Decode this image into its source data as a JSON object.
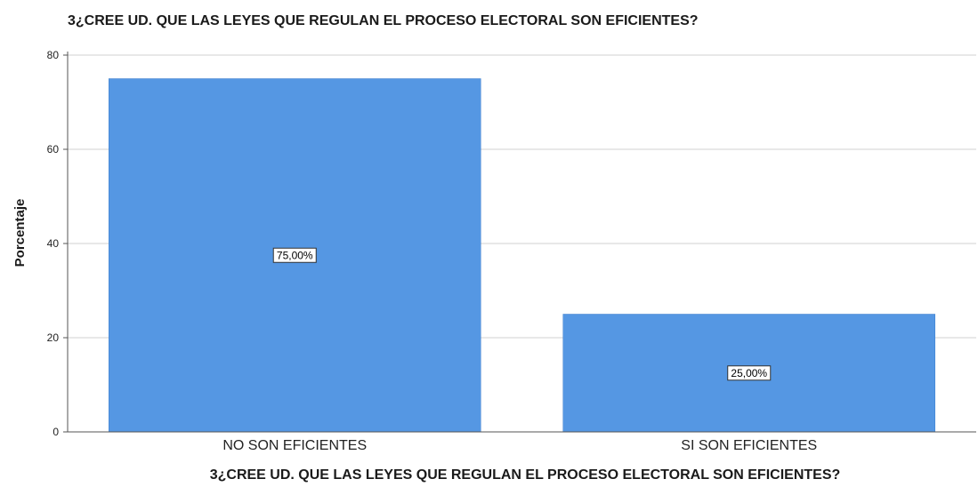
{
  "chart_data": {
    "type": "bar",
    "title": "3¿CREE UD. QUE LAS LEYES QUE REGULAN EL PROCESO ELECTORAL SON EFICIENTES?",
    "xlabel": "3¿CREE UD. QUE LAS LEYES QUE REGULAN EL PROCESO ELECTORAL SON EFICIENTES?",
    "ylabel": "Porcentaje",
    "categories": [
      "NO SON EFICIENTES",
      "SI SON EFICIENTES"
    ],
    "values": [
      75,
      25
    ],
    "data_labels": [
      "75,00%",
      "25,00%"
    ],
    "ylim": [
      0,
      80
    ],
    "yticks": [
      0,
      20,
      40,
      60,
      80
    ],
    "grid": true,
    "bar_color": "#5597e3"
  }
}
